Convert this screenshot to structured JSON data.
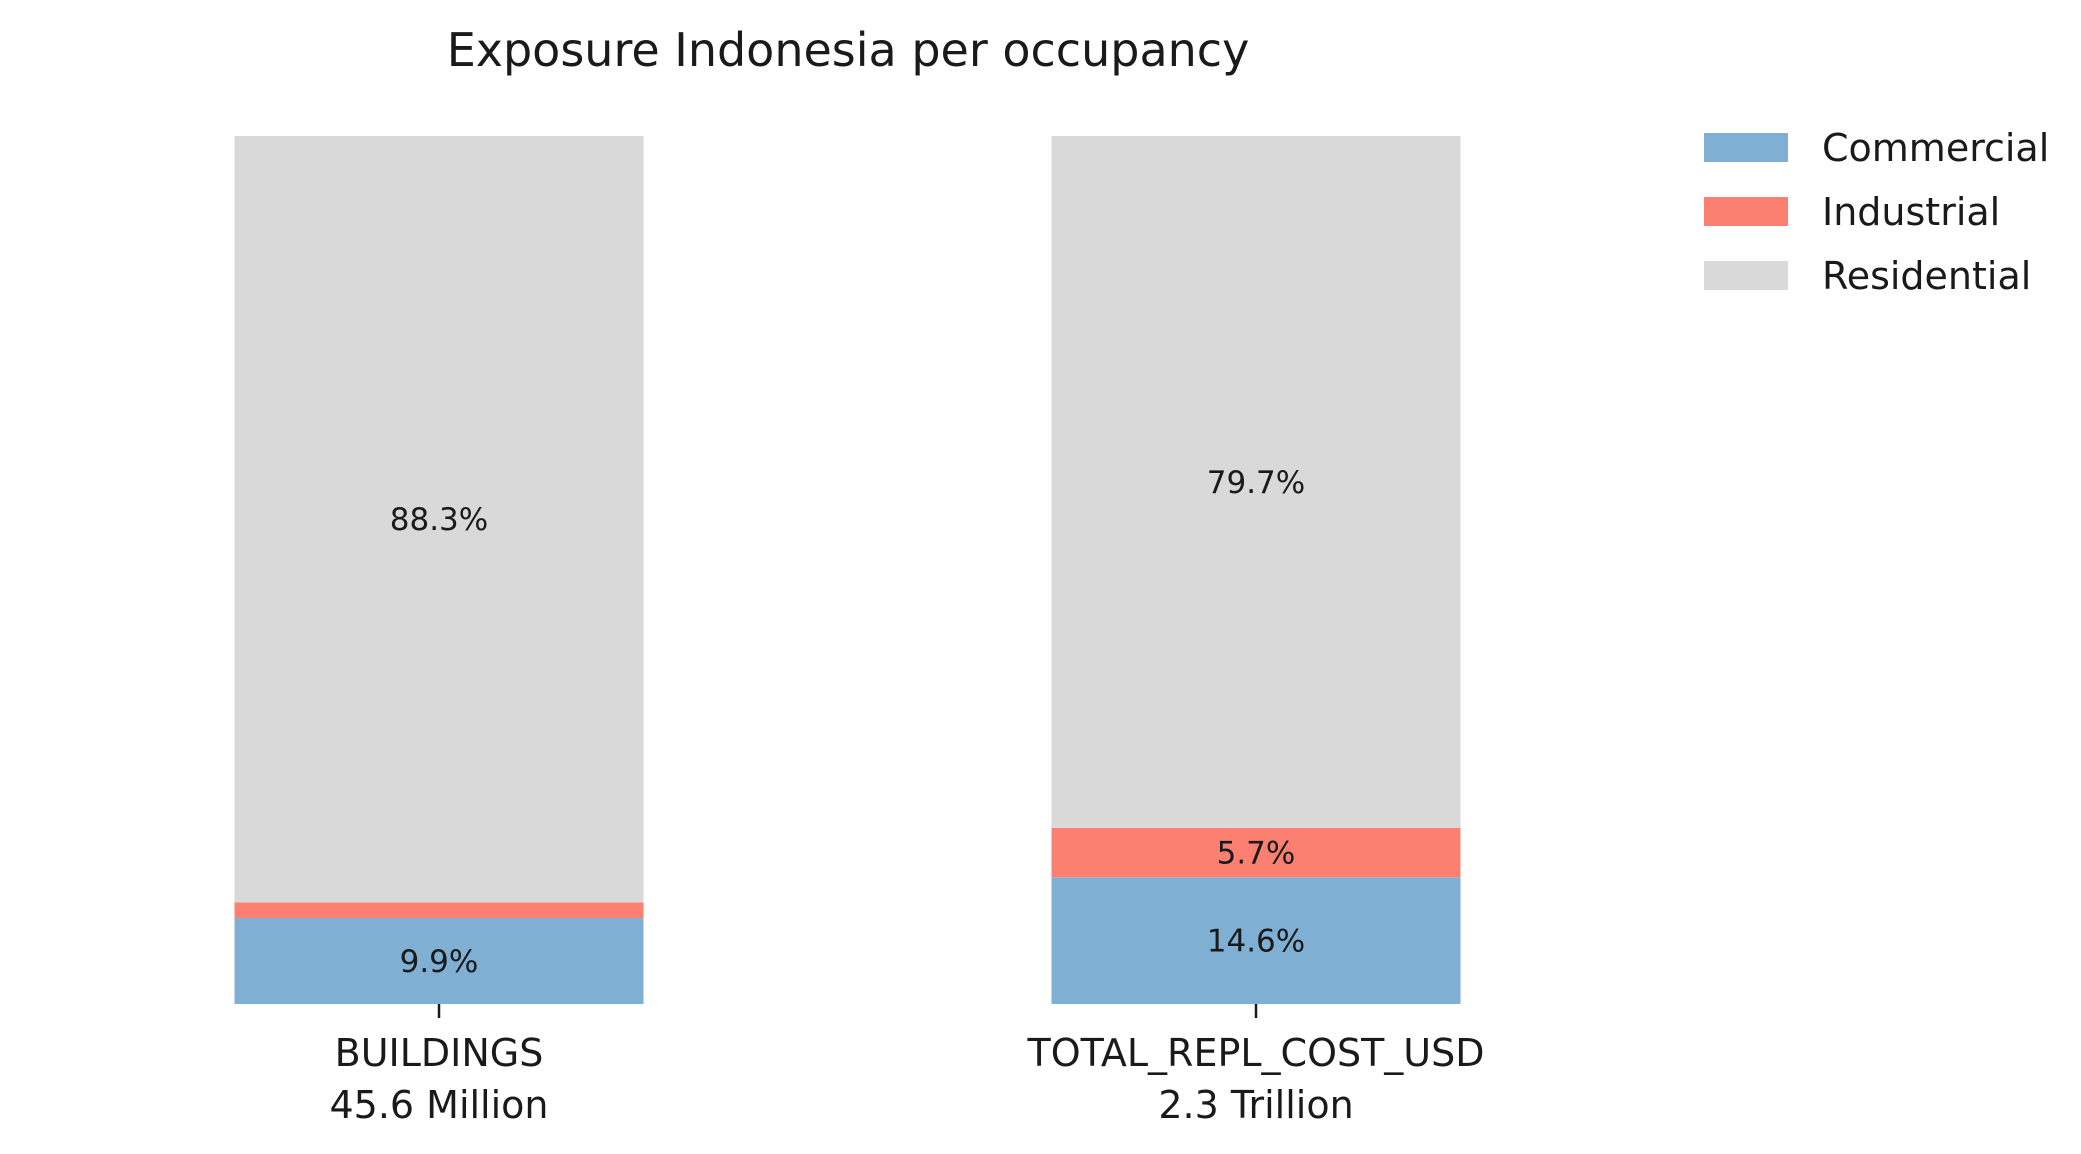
{
  "chart_data": {
    "type": "bar",
    "stacked": true,
    "title": "Exposure Indonesia per occupancy",
    "categories": [
      {
        "name": "BUILDINGS",
        "total": "45.6 Million"
      },
      {
        "name": "TOTAL_REPL_COST_USD",
        "total": "2.3 Trillion"
      }
    ],
    "series": [
      {
        "name": "Commercial",
        "color": "#7fb0d3",
        "values": [
          9.9,
          14.6
        ],
        "labels": [
          "9.9%",
          "14.6%"
        ]
      },
      {
        "name": "Industrial",
        "color": "#fb8072",
        "values": [
          1.8,
          5.7
        ],
        "labels": [
          "",
          "5.7%"
        ]
      },
      {
        "name": "Residential",
        "color": "#d9d9d9",
        "values": [
          88.3,
          79.7
        ],
        "labels": [
          "88.3%",
          "79.7%"
        ]
      }
    ],
    "ylim": [
      0,
      100
    ],
    "grid": false,
    "legend": "top-right"
  }
}
